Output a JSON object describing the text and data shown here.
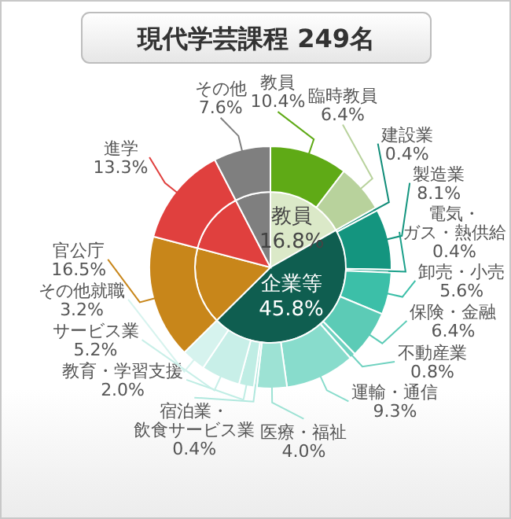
{
  "chart_data": [
    {
      "type": "pie",
      "title": "現代学芸課程 249名",
      "categories": [
        "教員",
        "企業等",
        null,
        null,
        null
      ],
      "values": [
        16.8,
        45.8,
        16.5,
        13.3,
        7.6
      ],
      "colors": [
        "#dbe9c8",
        "#0f5e50",
        "#c8861a",
        "#e0403e",
        "#7f7f7f"
      ],
      "value_labels": [
        "16.8%",
        "45.8%",
        null,
        null,
        null
      ]
    },
    {
      "type": "donut",
      "categories": [
        "教員",
        "臨時教員",
        "建設業",
        "製造業",
        "電気・ガス・熱供給",
        "卸売・小売",
        "保険・金融",
        "不動産業",
        "運輸・通信",
        "医療・福祉",
        "宿泊業・飲食サービス業",
        "教育・学習支援",
        "サービス業",
        "その他就職",
        "官公庁",
        "進学",
        "その他"
      ],
      "values": [
        10.4,
        6.4,
        0.4,
        8.1,
        0.4,
        5.6,
        6.4,
        0.8,
        9.3,
        4.0,
        0.4,
        2.0,
        5.2,
        3.2,
        16.5,
        13.3,
        7.6
      ],
      "colors": [
        "#5faa16",
        "#b8d29c",
        "#0f8c78",
        "#14957f",
        "#1aa08a",
        "#3cbfa8",
        "#5ccbb6",
        "#70d2c0",
        "#88dccc",
        "#9de2d4",
        "#b0e8de",
        "#bfede4",
        "#c8efe8",
        "#d6f3ee",
        "#c8861a",
        "#e0403e",
        "#7f7f7f"
      ],
      "value_labels": [
        "10.4%",
        "6.4%",
        "0.4%",
        "8.1%",
        "0.4%",
        "5.6%",
        "6.4%",
        "0.8%",
        "9.3%",
        "4.0%",
        "0.4%",
        "2.0%",
        "5.2%",
        "3.2%",
        "16.5%",
        "13.3%",
        "7.6%"
      ]
    }
  ]
}
